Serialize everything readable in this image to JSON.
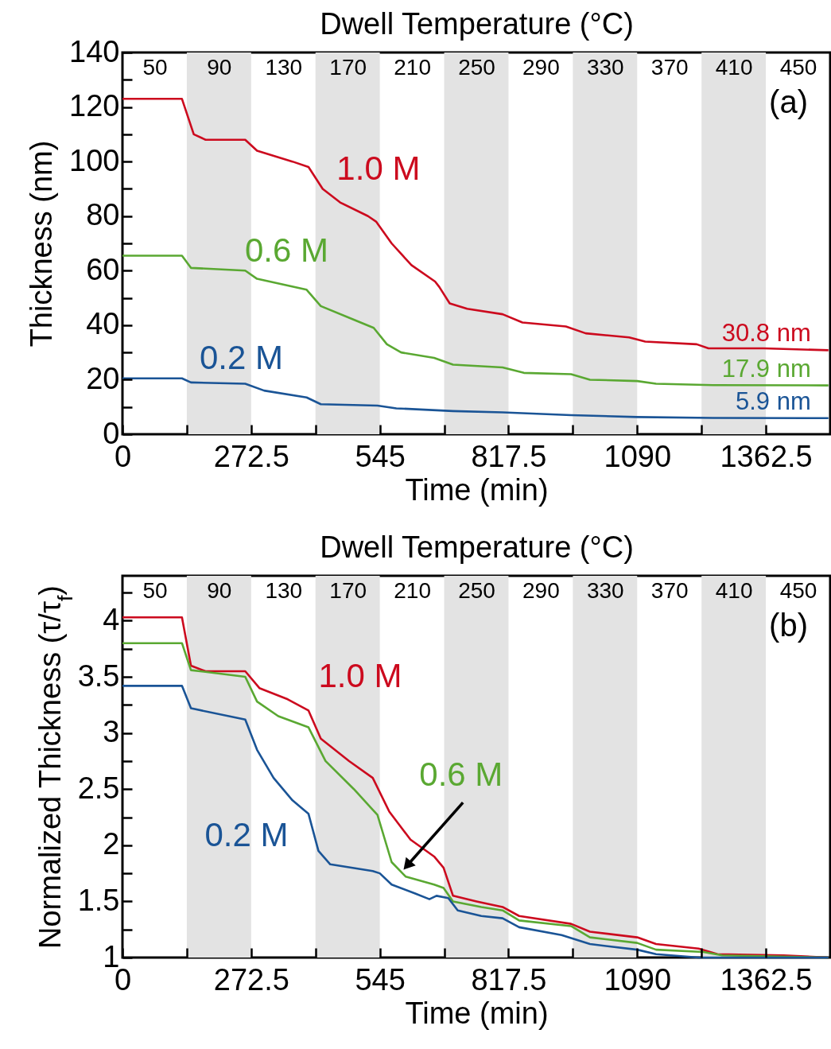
{
  "chart_data": [
    {
      "type": "line",
      "xlabel": "Time (min)",
      "ylabel": "Thickness (nm)",
      "x2label": "Dwell Temperature (°C)",
      "xlim": [
        0,
        1498.75
      ],
      "xticks": [
        0,
        {
          "value": 136.25,
          "label": null
        },
        272.5,
        {
          "value": 408.75,
          "label": null
        },
        545,
        {
          "value": 681.25,
          "label": null
        },
        817.5,
        {
          "value": 953.75,
          "label": null
        },
        1090,
        {
          "value": 1226.25,
          "label": null
        },
        1362.5
      ],
      "x2lim": [
        30,
        470
      ],
      "x2ticks": [
        50,
        90,
        130,
        170,
        210,
        250,
        290,
        330,
        370,
        410,
        450
      ],
      "ylim": [
        0,
        140
      ],
      "yticks": [
        0,
        {
          "value": 10,
          "label": null
        },
        20,
        {
          "value": 30,
          "label": null
        },
        40,
        {
          "value": 50,
          "label": null
        },
        60,
        {
          "value": 70,
          "label": null
        },
        80,
        {
          "value": 90,
          "label": null
        },
        100,
        {
          "value": 110,
          "label": null
        },
        120,
        {
          "value": 130,
          "label": null
        },
        140
      ],
      "grid": false,
      "bands": [
        {
          "axis": "x",
          "from": 136.25,
          "to": 272.5,
          "color": "#e3e3e3"
        },
        {
          "axis": "x",
          "from": 408.75,
          "to": 545,
          "color": "#e3e3e3"
        },
        {
          "axis": "x",
          "from": 681.25,
          "to": 817.5,
          "color": "#e3e3e3"
        },
        {
          "axis": "x",
          "from": 953.75,
          "to": 1090,
          "color": "#e3e3e3"
        },
        {
          "axis": "x",
          "from": 1226.25,
          "to": 1362.5,
          "color": "#e3e3e3"
        }
      ],
      "series": [
        {
          "name": "1.0 M",
          "color": "#cc0a1e",
          "x": [
            0,
            126,
            151,
            176,
            260,
            285,
            360,
            394,
            424,
            461,
            520,
            537,
            570,
            612,
            662,
            671,
            693,
            730,
            805,
            847,
            939,
            981,
            1073,
            1107,
            1216,
            1241,
            1358,
            1495
          ],
          "values": [
            123,
            123,
            110,
            108,
            108,
            104,
            100,
            98,
            90,
            85,
            80,
            78,
            70,
            62,
            56,
            54,
            48,
            46,
            44,
            41,
            39.5,
            37,
            35.5,
            34,
            33,
            31.5,
            31.5,
            30.8
          ]
        },
        {
          "name": "0.6 M",
          "color": "#5aa832",
          "x": [
            0,
            126,
            145,
            260,
            285,
            390,
            420,
            490,
            532,
            560,
            590,
            660,
            700,
            805,
            850,
            950,
            990,
            1090,
            1130,
            1250,
            1495
          ],
          "values": [
            65.5,
            65.5,
            61,
            60,
            57,
            53,
            47,
            42,
            39,
            33,
            30,
            28,
            25.5,
            24.5,
            22.5,
            22,
            20,
            19.5,
            18.5,
            18,
            17.9
          ]
        },
        {
          "name": "0.2 M",
          "color": "#1a5496",
          "x": [
            0,
            126,
            145,
            260,
            300,
            390,
            420,
            540,
            580,
            700,
            805,
            950,
            1090,
            1250,
            1495
          ],
          "values": [
            20.5,
            20.5,
            19,
            18.5,
            16,
            13.5,
            11,
            10.5,
            9.5,
            8.5,
            8,
            7,
            6.3,
            6,
            5.9
          ]
        }
      ],
      "annotations": [
        "(a)",
        "30.8 nm",
        "17.9 nm",
        "5.9 nm"
      ]
    },
    {
      "type": "line",
      "xlabel": "Time (min)",
      "ylabel": "Normalized Thickness (τ/τ$_{f}$)",
      "x2label": "Dwell Temperature (°C)",
      "xlim": [
        0,
        1498.75
      ],
      "xticks": [
        0,
        {
          "value": 136.25,
          "label": null
        },
        272.5,
        {
          "value": 408.75,
          "label": null
        },
        545,
        {
          "value": 681.25,
          "label": null
        },
        817.5,
        {
          "value": 953.75,
          "label": null
        },
        1090,
        {
          "value": 1226.25,
          "label": null
        },
        1362.5
      ],
      "x2lim": [
        30,
        470
      ],
      "x2ticks": [
        50,
        90,
        130,
        170,
        210,
        250,
        290,
        330,
        370,
        410,
        450
      ],
      "ylim": [
        1,
        4.4
      ],
      "yticks": [
        1,
        {
          "value": 1.25,
          "label": null
        },
        1.5,
        {
          "value": 1.75,
          "label": null
        },
        2,
        {
          "value": 2.25,
          "label": null
        },
        2.5,
        {
          "value": 2.75,
          "label": null
        },
        3,
        {
          "value": 3.25,
          "label": null
        },
        3.5,
        {
          "value": 3.75,
          "label": null
        },
        4,
        {
          "value": 4.25,
          "label": null
        }
      ],
      "grid": false,
      "bands": [
        {
          "axis": "x",
          "from": 136.25,
          "to": 272.5,
          "color": "#e3e3e3"
        },
        {
          "axis": "x",
          "from": 408.75,
          "to": 545,
          "color": "#e3e3e3"
        },
        {
          "axis": "x",
          "from": 681.25,
          "to": 817.5,
          "color": "#e3e3e3"
        },
        {
          "axis": "x",
          "from": 953.75,
          "to": 1090,
          "color": "#e3e3e3"
        },
        {
          "axis": "x",
          "from": 1226.25,
          "to": 1362.5,
          "color": "#e3e3e3"
        }
      ],
      "series": [
        {
          "name": "1.0 M",
          "color": "#cc0a1e",
          "x": [
            0,
            126,
            145,
            176,
            260,
            290,
            350,
            394,
            420,
            480,
            530,
            565,
            610,
            660,
            680,
            700,
            750,
            805,
            840,
            950,
            990,
            1090,
            1130,
            1220,
            1260,
            1400,
            1495
          ],
          "values": [
            4.03,
            4.03,
            3.6,
            3.55,
            3.55,
            3.4,
            3.3,
            3.2,
            2.95,
            2.75,
            2.6,
            2.3,
            2.05,
            1.9,
            1.8,
            1.55,
            1.5,
            1.45,
            1.37,
            1.3,
            1.23,
            1.18,
            1.12,
            1.08,
            1.03,
            1.02,
            1.0
          ]
        },
        {
          "name": "0.6 M",
          "color": "#5aa832",
          "x": [
            0,
            126,
            145,
            260,
            285,
            330,
            394,
            430,
            490,
            540,
            570,
            600,
            660,
            680,
            700,
            760,
            805,
            840,
            950,
            990,
            1090,
            1130,
            1230,
            1270,
            1495
          ],
          "values": [
            3.8,
            3.8,
            3.56,
            3.5,
            3.28,
            3.15,
            3.05,
            2.75,
            2.5,
            2.27,
            1.85,
            1.72,
            1.65,
            1.62,
            1.5,
            1.45,
            1.42,
            1.33,
            1.28,
            1.18,
            1.13,
            1.07,
            1.05,
            1.02,
            1.0
          ]
        },
        {
          "name": "0.2 M",
          "color": "#1a5496",
          "x": [
            0,
            126,
            145,
            260,
            285,
            320,
            360,
            394,
            415,
            440,
            530,
            545,
            570,
            620,
            650,
            665,
            690,
            710,
            760,
            805,
            840,
            930,
            990,
            1090,
            1130,
            1220,
            1495
          ],
          "values": [
            3.42,
            3.42,
            3.22,
            3.12,
            2.85,
            2.6,
            2.4,
            2.28,
            1.95,
            1.83,
            1.77,
            1.75,
            1.65,
            1.57,
            1.52,
            1.55,
            1.53,
            1.42,
            1.37,
            1.35,
            1.27,
            1.2,
            1.12,
            1.07,
            1.03,
            1.0,
            1.0
          ]
        }
      ],
      "annotations": [
        "(b)"
      ]
    }
  ]
}
